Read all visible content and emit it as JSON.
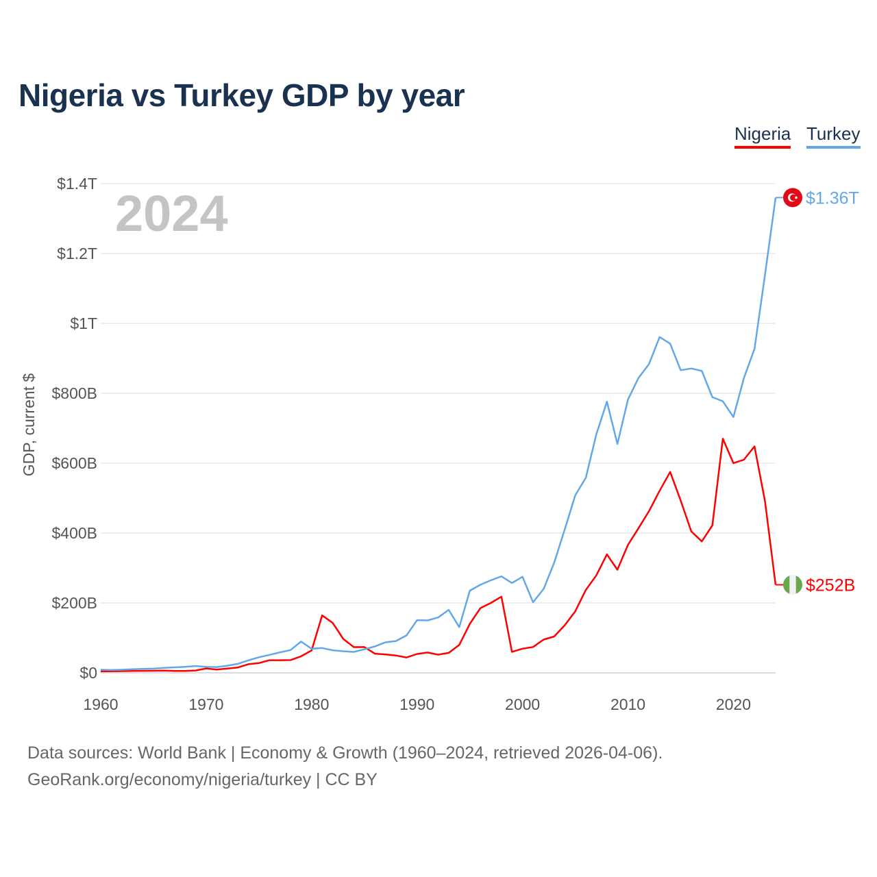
{
  "title": "Nigeria vs Turkey GDP by year",
  "legend": [
    {
      "name": "Nigeria",
      "color": "#ff0000"
    },
    {
      "name": "Turkey",
      "color": "#62a8e8"
    }
  ],
  "footer": {
    "line1": "Data sources: World Bank | Economy & Growth (1960–2024, retrieved 2026-04-06).",
    "line2": "GeoRank.org/economy/nigeria/turkey | CC BY"
  },
  "chart_data": {
    "type": "line",
    "title": "Nigeria vs Turkey GDP by year",
    "xlabel": "",
    "ylabel": "GDP, current $",
    "year_label": "2024",
    "xlim": [
      1960,
      2024
    ],
    "ylim": [
      0,
      1400
    ],
    "units": "billions USD",
    "x_ticks": [
      1960,
      1970,
      1980,
      1990,
      2000,
      2010,
      2020
    ],
    "x_tick_labels": [
      "1960",
      "1970",
      "1980",
      "1990",
      "2000",
      "2010",
      "2020"
    ],
    "y_ticks": [
      0,
      200,
      400,
      600,
      800,
      1000,
      1200,
      1400
    ],
    "y_tick_labels": [
      "$0",
      "$200B",
      "$400B",
      "$600B",
      "$800B",
      "$1T",
      "$1.2T",
      "$1.4T"
    ],
    "grid": true,
    "legend_position": "top-right",
    "x_start": 1960,
    "series": [
      {
        "name": "Nigeria",
        "color": "#ff0000",
        "end_label": "$252B",
        "flag": "nigeria",
        "values": [
          4.2,
          4.5,
          4.9,
          5.2,
          5.6,
          5.9,
          6.4,
          5.2,
          5.2,
          6.6,
          12.5,
          9.2,
          12.3,
          15.2,
          24.8,
          27.8,
          36,
          36,
          36.5,
          47.2,
          64.2,
          164.5,
          142.8,
          97.1,
          73.5,
          73.7,
          54.8,
          52.7,
          49.6,
          44,
          54,
          58,
          52,
          57,
          80,
          140,
          185,
          200,
          218,
          60,
          69,
          74,
          95,
          104,
          136,
          176,
          237,
          279,
          339,
          295,
          366,
          414,
          463,
          521,
          575,
          493,
          405,
          376,
          422,
          670,
          600,
          610,
          648,
          490,
          252
        ]
      },
      {
        "name": "Turkey",
        "color": "#62a8e8",
        "end_label": "$1.36T",
        "flag": "turkey",
        "values": [
          8.9,
          8.0,
          8.9,
          10.3,
          11.1,
          12.0,
          14.1,
          15.6,
          17.3,
          19.5,
          17.1,
          16.4,
          20.4,
          25.7,
          35.6,
          44.6,
          51.3,
          58.7,
          65.1,
          89.4,
          68.8,
          71.0,
          64.5,
          61.7,
          59.9,
          67.2,
          75.7,
          87.2,
          90.9,
          107.1,
          150.7,
          150.0,
          158.5,
          180.2,
          130.7,
          235,
          252,
          265,
          276,
          257,
          275,
          202,
          240,
          315,
          410,
          508,
          558,
          683,
          776,
          655,
          782,
          844,
          884,
          961,
          942,
          866,
          871,
          864,
          789,
          777,
          732,
          844,
          927,
          1140,
          1360
        ]
      }
    ]
  }
}
